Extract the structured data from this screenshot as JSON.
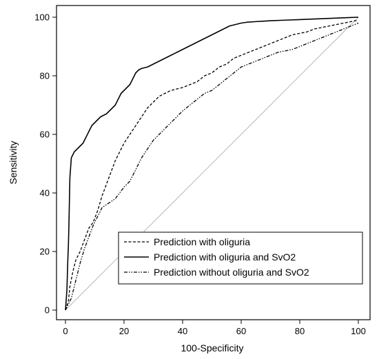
{
  "chart_data": {
    "type": "line",
    "title": "",
    "xlabel": "100-Specificity",
    "ylabel": "Sensitivity",
    "xlim": [
      0,
      100
    ],
    "ylim": [
      0,
      100
    ],
    "xticks": [
      0,
      20,
      40,
      60,
      80,
      100
    ],
    "yticks": [
      0,
      20,
      40,
      60,
      80,
      100
    ],
    "xtick_labels": [
      "0",
      "20",
      "40",
      "60",
      "80",
      "100"
    ],
    "ytick_labels": [
      "0",
      "20",
      "40",
      "60",
      "80",
      "100"
    ],
    "grid": false,
    "legend_position": "bottom-right",
    "reference_line": {
      "x": [
        0,
        100
      ],
      "y": [
        0,
        100
      ],
      "color": "#aaaaaa"
    },
    "series": [
      {
        "name": "Prediction with oliguria",
        "line_style": "dashed",
        "color": "#000000",
        "x": [
          0,
          1,
          1.5,
          2.5,
          3.5,
          5,
          6.5,
          8,
          9.5,
          11,
          12.5,
          14,
          15.5,
          17,
          18.5,
          20,
          22,
          24,
          26,
          28,
          30,
          32,
          34,
          36,
          38,
          40,
          42.5,
          45,
          47.5,
          50,
          52.5,
          55,
          57.5,
          60,
          62.5,
          65,
          67.5,
          70,
          72.5,
          75,
          77.5,
          80,
          82.5,
          85,
          87.5,
          90,
          92.5,
          95,
          97.5,
          100
        ],
        "y": [
          0,
          3,
          8,
          13,
          17,
          20,
          24,
          28,
          30,
          34,
          39,
          43,
          47,
          51,
          54,
          57,
          60,
          63,
          66,
          69,
          71,
          73,
          74,
          75,
          75.5,
          76,
          77,
          78,
          80,
          81,
          83,
          84,
          86,
          87,
          88,
          89,
          90,
          91,
          92,
          93,
          94,
          94.5,
          95,
          96,
          96.5,
          97,
          97.5,
          98,
          98.5,
          99
        ]
      },
      {
        "name": "Prediction with oliguria and SvO2",
        "line_style": "solid",
        "color": "#000000",
        "x": [
          0,
          0.5,
          0.8,
          1,
          1.2,
          1.5,
          2,
          3,
          4,
          5,
          6,
          7,
          8,
          9,
          10,
          11,
          12,
          13,
          14,
          15,
          16,
          17,
          18,
          19,
          20,
          21,
          22,
          23,
          24,
          25,
          26,
          28,
          30,
          32,
          34,
          36,
          38,
          40,
          42,
          44,
          46,
          48,
          50,
          52,
          54,
          56,
          58,
          60,
          62,
          65,
          70,
          75,
          80,
          85,
          90,
          95,
          100
        ],
        "y": [
          0,
          7,
          17,
          22,
          30,
          45,
          52,
          54,
          55,
          56,
          57,
          59,
          61,
          63,
          64,
          65,
          66,
          66.5,
          67,
          68,
          69,
          70,
          72,
          74,
          75,
          76,
          77,
          79,
          81,
          82,
          82.5,
          83,
          84,
          85,
          86,
          87,
          88,
          89,
          90,
          91,
          92,
          93,
          94,
          95,
          96,
          97,
          97.5,
          98,
          98.3,
          98.5,
          98.8,
          99,
          99.2,
          99.4,
          99.6,
          99.8,
          100
        ]
      },
      {
        "name": "Prediction without oliguria and SvO2",
        "line_style": "dash-dot-dot",
        "color": "#000000",
        "x": [
          0,
          1,
          2,
          3,
          4,
          5,
          6.5,
          8,
          9.5,
          11,
          12.5,
          14,
          15.5,
          17,
          18.5,
          20,
          22,
          24,
          26,
          28,
          30,
          32,
          34,
          36,
          38,
          40,
          42.5,
          45,
          47.5,
          50,
          52.5,
          55,
          57.5,
          60,
          62.5,
          65,
          67.5,
          70,
          72.5,
          75,
          77.5,
          80,
          82.5,
          85,
          87.5,
          90,
          92.5,
          95,
          97.5,
          100
        ],
        "y": [
          0,
          2,
          4,
          8,
          12,
          16,
          21,
          25,
          29,
          32,
          35,
          36,
          37,
          38,
          40,
          42,
          44,
          48,
          52,
          55,
          58,
          60,
          62,
          64,
          66,
          68,
          70,
          72,
          74,
          75,
          77,
          79,
          81,
          83,
          84,
          85,
          86,
          87,
          88,
          88.5,
          89,
          90,
          91,
          92,
          93,
          94,
          95,
          96,
          97,
          98
        ]
      }
    ]
  }
}
